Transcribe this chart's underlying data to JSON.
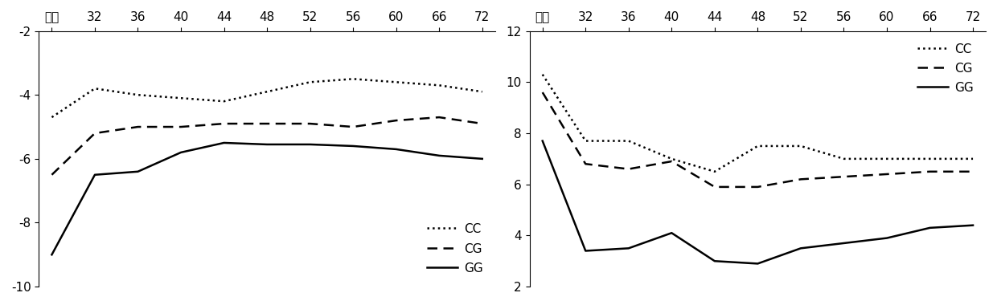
{
  "x_labels": [
    "开产",
    "32",
    "36",
    "40",
    "44",
    "48",
    "52",
    "56",
    "60",
    "66",
    "72"
  ],
  "x_positions": [
    0,
    1,
    2,
    3,
    4,
    5,
    6,
    7,
    8,
    9,
    10
  ],
  "left_ylim": [
    -10,
    -2
  ],
  "left_yticks": [
    -10,
    -8,
    -6,
    -4,
    -2
  ],
  "left_CC": [
    -4.7,
    -3.8,
    -4.0,
    -4.1,
    -4.2,
    -3.9,
    -3.6,
    -3.5,
    -3.6,
    -3.7,
    -3.9
  ],
  "left_CG": [
    -6.5,
    -5.2,
    -5.0,
    -5.0,
    -4.9,
    -4.9,
    -4.9,
    -5.0,
    -4.8,
    -4.7,
    -4.9
  ],
  "left_GG": [
    -9.0,
    -6.5,
    -6.4,
    -5.8,
    -5.5,
    -5.55,
    -5.55,
    -5.6,
    -5.7,
    -5.9,
    -6.0
  ],
  "right_ylim": [
    2,
    12
  ],
  "right_yticks": [
    2,
    4,
    6,
    8,
    10,
    12
  ],
  "right_CC": [
    10.3,
    7.7,
    7.7,
    7.0,
    6.5,
    7.5,
    7.5,
    7.0,
    7.0,
    7.0,
    7.0
  ],
  "right_CG": [
    9.6,
    6.8,
    6.6,
    6.9,
    5.9,
    5.9,
    6.2,
    6.3,
    6.4,
    6.5,
    6.5
  ],
  "right_GG": [
    7.7,
    3.4,
    3.5,
    4.1,
    3.0,
    2.9,
    3.5,
    3.7,
    3.9,
    4.3,
    4.4
  ],
  "line_color": "#000000",
  "bg_color": "#ffffff",
  "legend_labels": [
    "CC",
    "CG",
    "GG"
  ],
  "CC_linestyle": "dotted",
  "CG_linestyle": "dashed",
  "GG_linestyle": "solid",
  "linewidth": 1.8,
  "fontsize_ticks": 11,
  "fontsize_legend": 11
}
